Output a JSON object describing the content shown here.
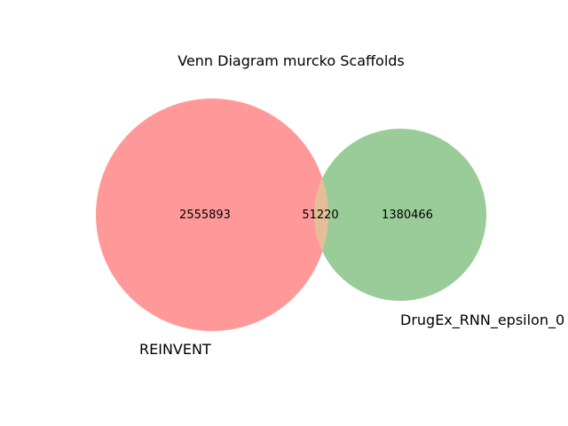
{
  "title": "Venn Diagram murcko Scaffolds",
  "sets": [
    {
      "label": "REINVENT",
      "color": "#ff9999"
    },
    {
      "label": "DrugEx_RNN_epsilon_0",
      "color": "#99cc99"
    }
  ],
  "regions": {
    "left_only": "2555893",
    "intersection": "51220",
    "right_only": "1380466"
  },
  "colors": {
    "intersection": "#e6bd99",
    "background": "#ffffff"
  }
}
